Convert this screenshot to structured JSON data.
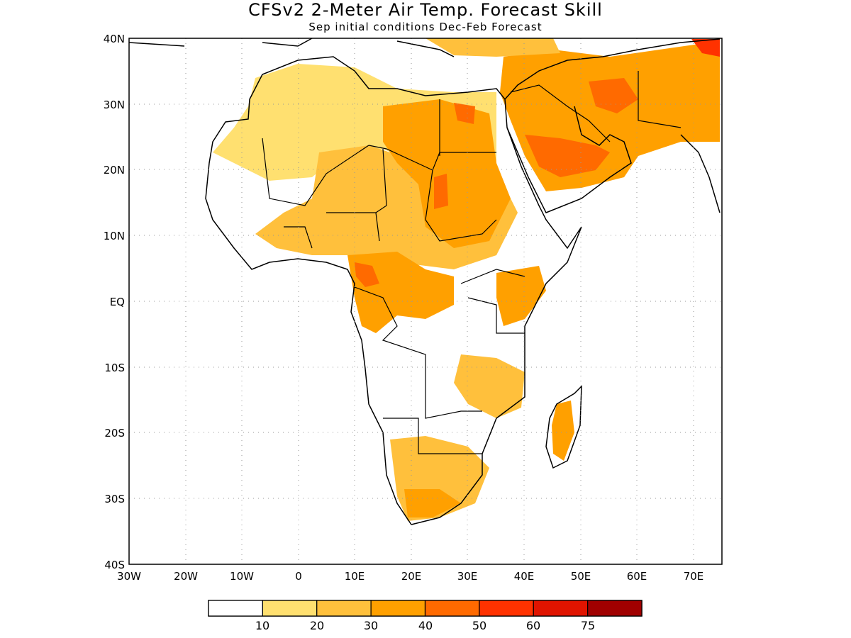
{
  "title": "CFSv2 2-Meter Air Temp. Forecast Skill",
  "subtitle": "Sep initial conditions   Dec-Feb Forecast",
  "map": {
    "region": "Africa and Arabian Peninsula",
    "lon_range": [
      -30,
      75
    ],
    "lat_range": [
      -40,
      40
    ],
    "grid": "dotted",
    "x_tick_labels": [
      "30W",
      "20W",
      "10W",
      "0",
      "10E",
      "20E",
      "30E",
      "40E",
      "50E",
      "60E",
      "70E"
    ],
    "y_tick_labels": [
      "40N",
      "30N",
      "20N",
      "10N",
      "EQ",
      "10S",
      "20S",
      "30S",
      "40S"
    ],
    "land_outline_color": "#000000",
    "ocean_color": "#ffffff"
  },
  "colorbar": {
    "colors": [
      "#ffffff",
      "#ffe070",
      "#ffc03c",
      "#ffa000",
      "#ff6a00",
      "#ff3200",
      "#e01400",
      "#a00000"
    ],
    "tick_labels": [
      "10",
      "20",
      "30",
      "40",
      "50",
      "60",
      "75"
    ]
  }
}
